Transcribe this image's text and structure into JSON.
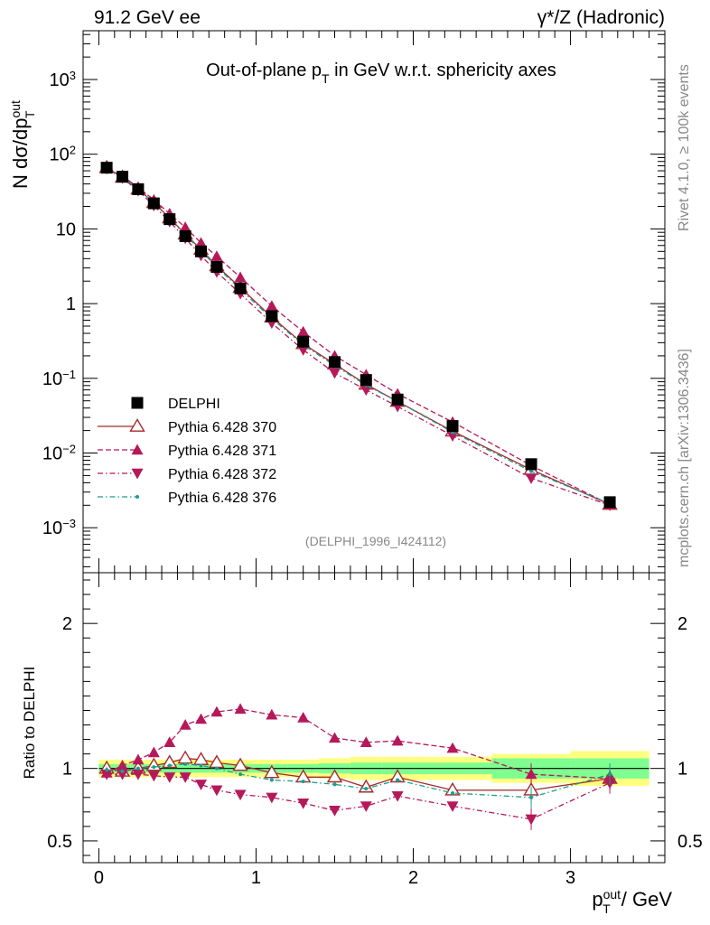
{
  "header": {
    "left": "91.2 GeV ee",
    "right": "γ*/Z (Hadronic)"
  },
  "side": {
    "rivet": "Rivet 4.1.0, ≥ 100k events",
    "source": "mcplots.cern.ch [arXiv:1306.3436]"
  },
  "analysis_tag": "(DELPHI_1996_I424112)",
  "chart_data": [
    {
      "type": "scatter",
      "panel": "main",
      "title": "Out-of-plane p_T in GeV w.r.t. sphericity axes",
      "ylabel": "N  dσ/dp_T^out",
      "yscale": "log",
      "ylim": [
        0.00025,
        4500
      ],
      "xlim": [
        -0.1,
        3.6
      ],
      "y_tick_labels": [
        "10^-3",
        "10^-2",
        "10^-1",
        "1",
        "10",
        "10^2",
        "10^3"
      ],
      "legend_position": "left-middle",
      "x": [
        0.05,
        0.15,
        0.25,
        0.35,
        0.45,
        0.55,
        0.65,
        0.75,
        0.9,
        1.1,
        1.3,
        1.5,
        1.7,
        1.9,
        2.25,
        2.75,
        3.25
      ],
      "series": [
        {
          "name": "DELPHI",
          "key": "data",
          "marker": "square",
          "color": "#000000",
          "values": [
            66,
            50,
            34,
            22,
            13.5,
            8.0,
            5.0,
            3.1,
            1.6,
            0.68,
            0.31,
            0.165,
            0.095,
            0.052,
            0.023,
            0.0071,
            0.0022
          ]
        },
        {
          "name": "Pythia 6.428 370",
          "key": "p370",
          "marker": "triangle-up-open",
          "line": "solid",
          "color": "#a52a2a",
          "values": [
            66,
            49,
            34,
            22.5,
            14,
            8.5,
            5.3,
            3.2,
            1.64,
            0.66,
            0.29,
            0.155,
            0.083,
            0.049,
            0.0196,
            0.006,
            0.00205
          ]
        },
        {
          "name": "Pythia 6.428 371",
          "key": "p371",
          "marker": "triangle-up",
          "line": "dashed",
          "color": "#b5195a",
          "values": [
            64,
            51,
            36,
            24.5,
            16,
            10.5,
            6.5,
            4.3,
            2.25,
            0.93,
            0.42,
            0.2,
            0.112,
            0.062,
            0.026,
            0.0068,
            0.00205
          ]
        },
        {
          "name": "Pythia 6.428 372",
          "key": "p372",
          "marker": "triangle-down",
          "line": "dashdot",
          "color": "#b5195a",
          "values": [
            64,
            48,
            32.5,
            20.5,
            12.5,
            7.5,
            4.4,
            2.65,
            1.36,
            0.55,
            0.24,
            0.118,
            0.07,
            0.042,
            0.017,
            0.0046,
            0.002
          ]
        },
        {
          "name": "Pythia 6.428 376",
          "key": "p376",
          "marker": "dot",
          "line": "dashdot",
          "color": "#1a9e8f",
          "values": [
            65,
            49,
            34,
            22.3,
            13.7,
            8.3,
            5.1,
            3.1,
            1.55,
            0.63,
            0.28,
            0.148,
            0.081,
            0.049,
            0.019,
            0.0057,
            0.0021
          ]
        }
      ]
    },
    {
      "type": "scatter",
      "panel": "ratio",
      "ylabel": "Ratio to DELPHI",
      "xlabel": "p_T^out / GeV",
      "ylim": [
        0.35,
        2.35
      ],
      "xlim": [
        -0.1,
        3.6
      ],
      "x_ticks": [
        0,
        1,
        2,
        3
      ],
      "y_ticks": [
        0.5,
        1,
        2
      ],
      "x": [
        0.05,
        0.15,
        0.25,
        0.35,
        0.45,
        0.55,
        0.65,
        0.75,
        0.9,
        1.1,
        1.3,
        1.5,
        1.7,
        1.9,
        2.25,
        2.75,
        3.25
      ],
      "bands": {
        "edges": [
          0.0,
          0.1,
          0.2,
          0.3,
          0.4,
          0.5,
          0.6,
          0.7,
          0.8,
          1.0,
          1.2,
          1.4,
          1.6,
          1.8,
          2.0,
          2.5,
          3.0,
          3.5
        ],
        "yellow_halfwidth": [
          0.06,
          0.06,
          0.06,
          0.06,
          0.06,
          0.06,
          0.06,
          0.06,
          0.06,
          0.06,
          0.06,
          0.07,
          0.08,
          0.08,
          0.08,
          0.1,
          0.12
        ],
        "green_halfwidth": [
          0.03,
          0.03,
          0.03,
          0.03,
          0.03,
          0.03,
          0.03,
          0.03,
          0.03,
          0.03,
          0.03,
          0.035,
          0.04,
          0.04,
          0.04,
          0.07,
          0.07
        ]
      },
      "series": [
        {
          "name": "Pythia 6.428 370",
          "key": "p370",
          "marker": "triangle-up-open",
          "line": "solid",
          "color": "#a52a2a",
          "values": [
            1.0,
            0.98,
            1.0,
            1.02,
            1.04,
            1.07,
            1.06,
            1.04,
            1.02,
            0.97,
            0.94,
            0.94,
            0.87,
            0.94,
            0.85,
            0.85,
            0.93
          ]
        },
        {
          "name": "Pythia 6.428 371",
          "key": "p371",
          "marker": "triangle-up",
          "line": "dashed",
          "color": "#b5195a",
          "values": [
            0.97,
            1.02,
            1.06,
            1.11,
            1.18,
            1.3,
            1.34,
            1.39,
            1.41,
            1.37,
            1.35,
            1.21,
            1.18,
            1.19,
            1.14,
            0.96,
            0.93
          ]
        },
        {
          "name": "Pythia 6.428 372",
          "key": "p372",
          "marker": "triangle-down",
          "line": "dashdot",
          "color": "#b5195a",
          "values": [
            0.96,
            0.96,
            0.96,
            0.95,
            0.94,
            0.94,
            0.89,
            0.85,
            0.82,
            0.8,
            0.76,
            0.71,
            0.74,
            0.81,
            0.74,
            0.65,
            0.9
          ]
        },
        {
          "name": "Pythia 6.428 376",
          "key": "p376",
          "marker": "dot",
          "line": "dashdot",
          "color": "#1a9e8f",
          "values": [
            0.99,
            0.98,
            1.0,
            1.01,
            1.02,
            1.03,
            1.02,
            1.0,
            0.96,
            0.92,
            0.91,
            0.89,
            0.86,
            0.92,
            0.83,
            0.8,
            0.96
          ]
        }
      ]
    }
  ]
}
